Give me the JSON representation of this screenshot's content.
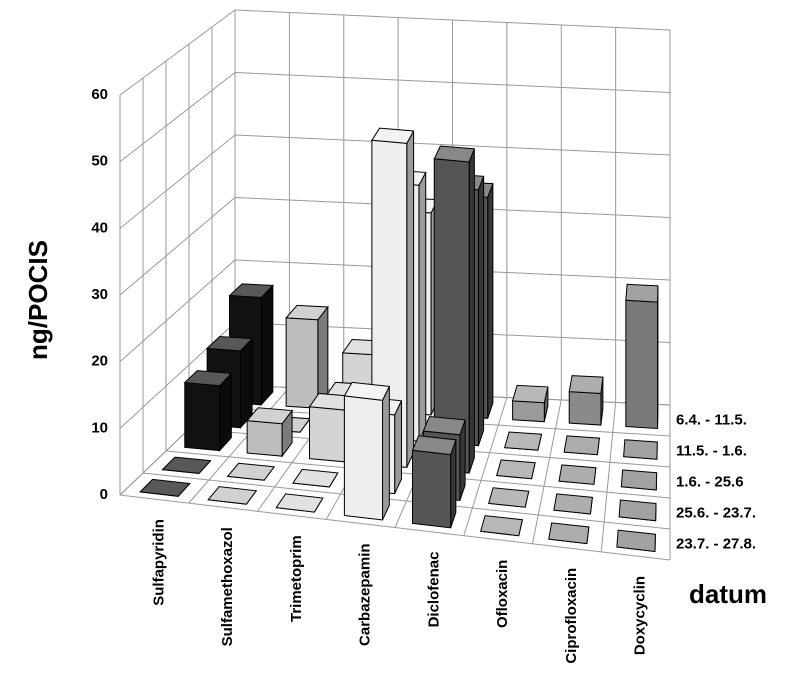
{
  "chart_data": {
    "type": "bar3d",
    "y_label": "ng/POCIS",
    "depth_label": "datum",
    "categories": [
      "Sulfapyridin",
      "Sulfamethoxazol",
      "Trimetoprim",
      "Carbazepamin",
      "Diclofenac",
      "Ofloxacin",
      "Ciprofloxacin",
      "Doxycyclin"
    ],
    "colors": [
      "#111111",
      "#bdbdbd",
      "#d4d4d4",
      "#eeeeee",
      "#555555",
      "#9a9a9a",
      "#8a8a8a",
      "#7a7a7a"
    ],
    "series": [
      {
        "name": "6.4. - 11.5.",
        "values": [
          17,
          14,
          9,
          32,
          35,
          3,
          5,
          20
        ]
      },
      {
        "name": "11.5. - 1.6.",
        "values": [
          12,
          0,
          6,
          40,
          40,
          0,
          0,
          0
        ]
      },
      {
        "name": "1.6. - 25.6",
        "values": [
          10,
          5,
          8,
          50,
          48,
          0,
          0,
          0
        ]
      },
      {
        "name": "25.6. - 23.7.",
        "values": [
          0,
          0,
          0,
          12,
          10,
          0,
          0,
          0
        ]
      },
      {
        "name": "23.7. - 27.8.",
        "values": [
          0,
          0,
          0,
          18,
          11,
          0,
          0,
          0
        ]
      }
    ],
    "ylim": [
      0,
      60
    ],
    "yticks": [
      0,
      10,
      20,
      30,
      40,
      50,
      60
    ],
    "grid": true
  }
}
